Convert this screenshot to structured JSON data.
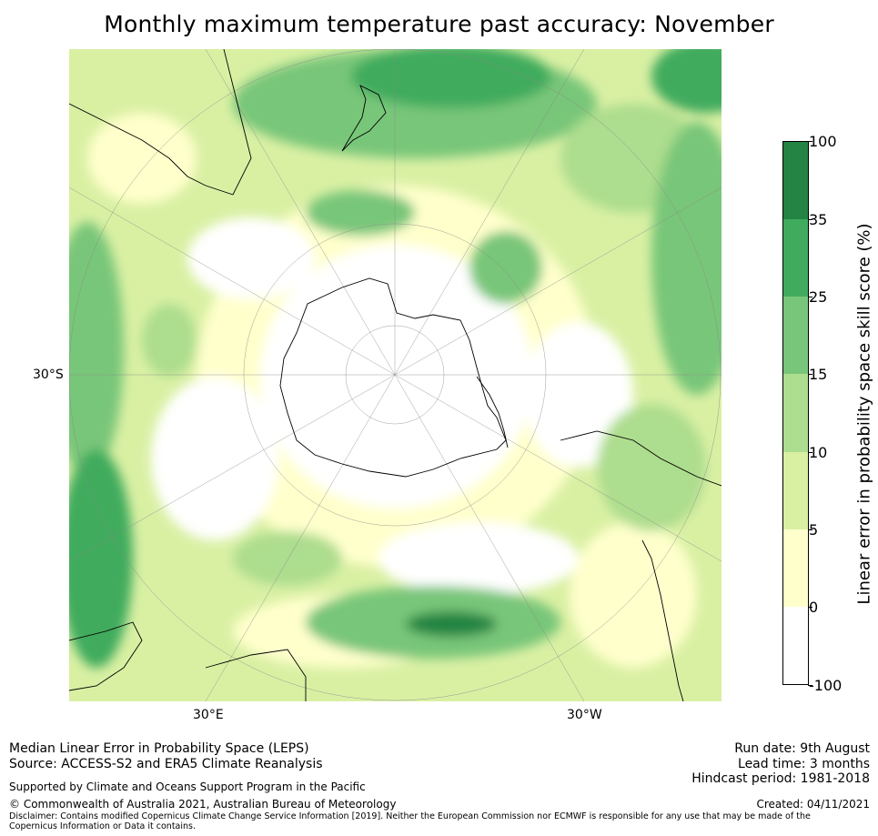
{
  "title": "Monthly maximum temperature past accuracy: November",
  "map": {
    "projection": "south-polar-stereographic",
    "lat_label": "30°S",
    "lon_labels": {
      "east": "30°E",
      "west": "30°W"
    },
    "variable": "Median LEPS skill score (%)"
  },
  "colorbar": {
    "label": "Linear error in probability space skill score (%)",
    "ticks": [
      "100",
      "35",
      "25",
      "15",
      "10",
      "5",
      "0",
      "-100"
    ],
    "bins": [
      {
        "from": 35,
        "to": 100,
        "color": "#238443"
      },
      {
        "from": 25,
        "to": 35,
        "color": "#41ab5d"
      },
      {
        "from": 15,
        "to": 25,
        "color": "#78c679"
      },
      {
        "from": 10,
        "to": 15,
        "color": "#addd8e"
      },
      {
        "from": 5,
        "to": 10,
        "color": "#d9f0a3"
      },
      {
        "from": 0,
        "to": 5,
        "color": "#ffffcc"
      },
      {
        "from": -100,
        "to": 0,
        "color": "#ffffff"
      }
    ]
  },
  "footer": {
    "method": "Median Linear Error in Probability Space (LEPS)",
    "source": "Source: ACCESS-S2 and ERA5 Climate Reanalysis",
    "support": "Supported by Climate and Oceans Support Program in the Pacific",
    "copyright": "© Commonwealth of Australia 2021, Australian Bureau of Meteorology",
    "disclaimer": "Disclaimer: Contains modified Copernicus Climate Change Service Information [2019]. Neither the European Commission nor ECMWF is responsible for any use that may be made of the Copernicus Information or Data it contains.",
    "run_date": "Run date: 9th August",
    "lead_time": "Lead time: 3 months",
    "hindcast": "Hindcast period: 1981-2018",
    "created": "Created: 04/11/2021"
  }
}
